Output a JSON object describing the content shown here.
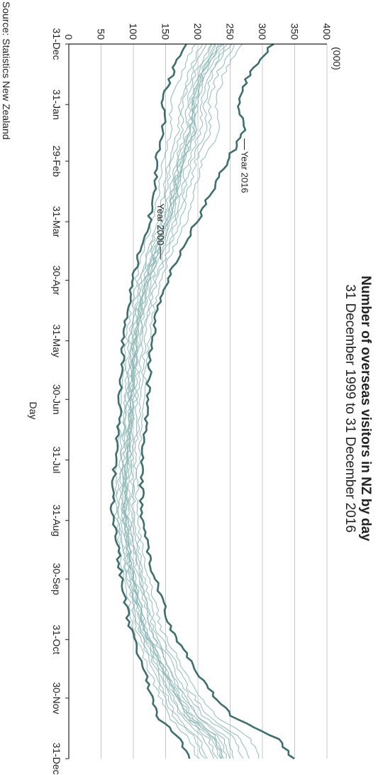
{
  "chart_data": {
    "type": "line",
    "orientation": "rotated-90-clockwise",
    "title": "Number of overseas visitors in NZ by day",
    "subtitle": "31 December 1999 to 31 December 2016",
    "xlabel": "Day",
    "ylabel": "",
    "y_unit_label": "(000)",
    "source": "Source: Statistics New Zealand",
    "xlim": [
      0,
      366
    ],
    "ylim": [
      0,
      400
    ],
    "y_ticks": [
      0,
      50,
      100,
      150,
      200,
      250,
      300,
      350,
      400
    ],
    "x_ticks": [
      {
        "label": "31-Dec",
        "day": 0
      },
      {
        "label": "31-Jan",
        "day": 31
      },
      {
        "label": "29-Feb",
        "day": 60
      },
      {
        "label": "31-Mar",
        "day": 91
      },
      {
        "label": "30-Apr",
        "day": 121
      },
      {
        "label": "31-May",
        "day": 152
      },
      {
        "label": "30-Jun",
        "day": 182
      },
      {
        "label": "31-Jul",
        "day": 213
      },
      {
        "label": "31-Aug",
        "day": 244
      },
      {
        "label": "30-Sep",
        "day": 274
      },
      {
        "label": "31-Oct",
        "day": 305
      },
      {
        "label": "30-Nov",
        "day": 335
      },
      {
        "label": "31-Dec",
        "day": 366
      }
    ],
    "grid": true,
    "colors": {
      "thin": "#8fb8b8",
      "bold": "#3f6e6e",
      "grid": "#c8c8c8",
      "axis": "#222222"
    },
    "annotations": [
      {
        "text": "Year 2016",
        "series": "2016",
        "day": 52,
        "value": 272
      },
      {
        "text": "Year 2000",
        "series": "2000",
        "day": 106,
        "value": 142
      }
    ],
    "series": [
      {
        "id": "2000",
        "bold": true,
        "x": [
          0,
          15,
          30,
          45,
          60,
          75,
          90,
          105,
          120,
          135,
          150,
          165,
          180,
          195,
          210,
          225,
          240,
          255,
          270,
          285,
          300,
          315,
          330,
          345,
          355,
          366
        ],
        "values": [
          180,
          160,
          145,
          148,
          135,
          135,
          125,
          110,
          100,
          92,
          85,
          82,
          80,
          78,
          72,
          70,
          68,
          75,
          80,
          88,
          95,
          110,
          125,
          140,
          170,
          185
        ]
      },
      {
        "id": "2001",
        "bold": false,
        "x": [
          0,
          15,
          30,
          45,
          60,
          75,
          90,
          105,
          120,
          135,
          150,
          165,
          180,
          195,
          210,
          225,
          240,
          255,
          270,
          285,
          300,
          315,
          330,
          345,
          355,
          366
        ],
        "values": [
          195,
          175,
          158,
          158,
          145,
          140,
          130,
          115,
          105,
          96,
          90,
          86,
          83,
          80,
          76,
          73,
          72,
          78,
          84,
          93,
          100,
          118,
          135,
          155,
          185,
          200
        ]
      },
      {
        "id": "2002",
        "bold": false,
        "x": [
          0,
          15,
          30,
          45,
          60,
          75,
          90,
          105,
          120,
          135,
          150,
          165,
          180,
          195,
          210,
          225,
          240,
          255,
          270,
          285,
          300,
          315,
          330,
          345,
          355,
          366
        ],
        "values": [
          205,
          185,
          172,
          170,
          155,
          148,
          140,
          122,
          110,
          100,
          94,
          90,
          87,
          84,
          80,
          77,
          76,
          82,
          88,
          97,
          105,
          124,
          142,
          163,
          195,
          210
        ]
      },
      {
        "id": "2003",
        "bold": false,
        "x": [
          0,
          15,
          30,
          45,
          60,
          75,
          90,
          105,
          120,
          135,
          150,
          165,
          180,
          195,
          210,
          225,
          240,
          255,
          270,
          285,
          300,
          315,
          330,
          345,
          355,
          366
        ],
        "values": [
          212,
          190,
          176,
          176,
          160,
          152,
          142,
          126,
          112,
          103,
          96,
          92,
          90,
          86,
          82,
          80,
          78,
          84,
          90,
          100,
          108,
          128,
          146,
          168,
          200,
          215
        ]
      },
      {
        "id": "2004",
        "bold": false,
        "x": [
          0,
          15,
          30,
          45,
          60,
          75,
          90,
          105,
          120,
          135,
          150,
          165,
          180,
          195,
          210,
          225,
          240,
          255,
          270,
          285,
          300,
          315,
          330,
          345,
          355,
          366
        ],
        "values": [
          220,
          196,
          184,
          182,
          166,
          157,
          147,
          130,
          116,
          106,
          99,
          95,
          92,
          89,
          85,
          82,
          81,
          87,
          93,
          103,
          112,
          132,
          151,
          175,
          210,
          225
        ]
      },
      {
        "id": "2005",
        "bold": false,
        "x": [
          0,
          15,
          30,
          45,
          60,
          75,
          90,
          105,
          120,
          135,
          150,
          165,
          180,
          195,
          210,
          225,
          240,
          255,
          270,
          285,
          300,
          315,
          330,
          345,
          355,
          366
        ],
        "values": [
          225,
          200,
          187,
          186,
          170,
          160,
          150,
          133,
          118,
          108,
          101,
          97,
          94,
          91,
          87,
          84,
          83,
          89,
          95,
          105,
          114,
          135,
          155,
          180,
          215,
          230
        ]
      },
      {
        "id": "2006",
        "bold": false,
        "x": [
          0,
          15,
          30,
          45,
          60,
          75,
          90,
          105,
          120,
          135,
          150,
          165,
          180,
          195,
          210,
          225,
          240,
          255,
          270,
          285,
          300,
          315,
          330,
          345,
          355,
          366
        ],
        "values": [
          228,
          203,
          190,
          190,
          172,
          162,
          152,
          136,
          120,
          110,
          103,
          99,
          96,
          93,
          89,
          86,
          85,
          91,
          97,
          107,
          116,
          138,
          158,
          184,
          220,
          235
        ]
      },
      {
        "id": "2007",
        "bold": false,
        "x": [
          0,
          15,
          30,
          45,
          60,
          75,
          90,
          105,
          120,
          135,
          150,
          165,
          180,
          195,
          210,
          225,
          240,
          255,
          270,
          285,
          300,
          315,
          330,
          345,
          355,
          366
        ],
        "values": [
          235,
          208,
          195,
          196,
          176,
          166,
          156,
          139,
          123,
          112,
          105,
          101,
          98,
          95,
          91,
          88,
          87,
          93,
          99,
          110,
          119,
          141,
          162,
          188,
          225,
          240
        ]
      },
      {
        "id": "2008",
        "bold": false,
        "x": [
          0,
          15,
          30,
          45,
          60,
          75,
          90,
          105,
          120,
          135,
          150,
          165,
          180,
          195,
          210,
          225,
          240,
          255,
          270,
          285,
          300,
          315,
          330,
          345,
          355,
          366
        ],
        "values": [
          232,
          205,
          193,
          194,
          175,
          165,
          155,
          137,
          121,
          111,
          104,
          100,
          97,
          94,
          90,
          87,
          86,
          92,
          98,
          108,
          117,
          139,
          160,
          186,
          222,
          238
        ]
      },
      {
        "id": "2009",
        "bold": false,
        "x": [
          0,
          15,
          30,
          45,
          60,
          75,
          90,
          105,
          120,
          135,
          150,
          165,
          180,
          195,
          210,
          225,
          240,
          255,
          270,
          285,
          300,
          315,
          330,
          345,
          355,
          366
        ],
        "values": [
          230,
          204,
          191,
          192,
          173,
          163,
          153,
          136,
          120,
          110,
          103,
          99,
          96,
          93,
          89,
          86,
          85,
          91,
          97,
          108,
          117,
          140,
          162,
          190,
          228,
          242
        ]
      },
      {
        "id": "2010",
        "bold": false,
        "x": [
          0,
          15,
          30,
          45,
          60,
          75,
          90,
          105,
          120,
          135,
          150,
          165,
          180,
          195,
          210,
          225,
          240,
          255,
          270,
          285,
          300,
          315,
          330,
          345,
          355,
          366
        ],
        "values": [
          238,
          210,
          197,
          198,
          178,
          168,
          158,
          140,
          124,
          113,
          106,
          102,
          99,
          96,
          92,
          89,
          88,
          94,
          100,
          111,
          120,
          143,
          165,
          193,
          232,
          246
        ]
      },
      {
        "id": "2011",
        "bold": false,
        "x": [
          0,
          15,
          30,
          45,
          60,
          75,
          90,
          105,
          120,
          135,
          150,
          165,
          180,
          195,
          210,
          225,
          240,
          255,
          270,
          285,
          300,
          315,
          330,
          345,
          355,
          366
        ],
        "values": [
          242,
          214,
          200,
          185,
          176,
          170,
          160,
          143,
          126,
          115,
          108,
          104,
          101,
          98,
          94,
          91,
          90,
          98,
          108,
          120,
          126,
          148,
          170,
          198,
          238,
          250
        ]
      },
      {
        "id": "2012",
        "bold": false,
        "x": [
          0,
          15,
          30,
          45,
          60,
          75,
          90,
          105,
          120,
          135,
          150,
          165,
          180,
          195,
          210,
          225,
          240,
          255,
          270,
          285,
          300,
          315,
          330,
          345,
          355,
          366
        ],
        "values": [
          245,
          218,
          204,
          205,
          184,
          174,
          163,
          146,
          129,
          118,
          110,
          106,
          103,
          100,
          96,
          93,
          92,
          99,
          105,
          116,
          126,
          150,
          172,
          202,
          245,
          258
        ]
      },
      {
        "id": "2013",
        "bold": false,
        "x": [
          0,
          15,
          30,
          45,
          60,
          75,
          90,
          105,
          120,
          135,
          150,
          165,
          180,
          195,
          210,
          225,
          240,
          255,
          270,
          285,
          300,
          315,
          330,
          345,
          355,
          366
        ],
        "values": [
          250,
          222,
          210,
          212,
          190,
          180,
          168,
          150,
          133,
          122,
          114,
          110,
          107,
          104,
          100,
          97,
          96,
          103,
          110,
          121,
          131,
          156,
          178,
          210,
          255,
          268
        ]
      },
      {
        "id": "2014",
        "bold": false,
        "x": [
          0,
          15,
          30,
          45,
          60,
          75,
          90,
          105,
          120,
          135,
          150,
          165,
          180,
          195,
          210,
          225,
          240,
          255,
          270,
          285,
          300,
          315,
          330,
          345,
          355,
          366
        ],
        "values": [
          258,
          230,
          218,
          220,
          197,
          186,
          174,
          155,
          138,
          126,
          118,
          114,
          111,
          108,
          104,
          101,
          100,
          107,
          114,
          126,
          136,
          162,
          185,
          218,
          265,
          280
        ]
      },
      {
        "id": "2015",
        "bold": false,
        "x": [
          0,
          15,
          30,
          45,
          60,
          75,
          90,
          105,
          120,
          135,
          150,
          165,
          180,
          195,
          210,
          225,
          240,
          255,
          270,
          285,
          300,
          315,
          330,
          345,
          355,
          366
        ],
        "values": [
          270,
          240,
          228,
          232,
          207,
          195,
          182,
          162,
          144,
          132,
          124,
          119,
          116,
          113,
          109,
          106,
          105,
          112,
          120,
          133,
          143,
          170,
          195,
          230,
          280,
          295
        ]
      },
      {
        "id": "2016",
        "bold": true,
        "x": [
          0,
          15,
          30,
          45,
          60,
          75,
          90,
          105,
          120,
          135,
          150,
          165,
          180,
          195,
          210,
          225,
          240,
          255,
          270,
          285,
          300,
          315,
          330,
          345,
          355,
          366
        ],
        "values": [
          315,
          280,
          262,
          272,
          245,
          222,
          200,
          175,
          153,
          138,
          130,
          125,
          123,
          120,
          116,
          113,
          112,
          120,
          130,
          145,
          158,
          187,
          215,
          255,
          320,
          348
        ]
      }
    ]
  }
}
